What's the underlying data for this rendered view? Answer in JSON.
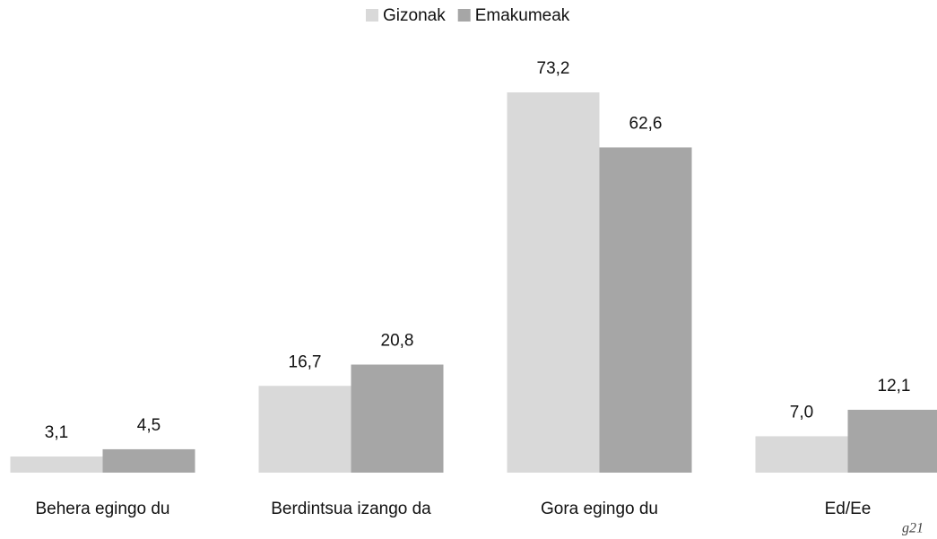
{
  "chart_data": {
    "type": "bar",
    "categories": [
      "Behera egingo du",
      "Berdintsua izango da",
      "Gora egingo du",
      "Ed/Ee"
    ],
    "series": [
      {
        "name": "Gizonak",
        "color": "#d9d9d9",
        "values": [
          3.1,
          16.7,
          73.2,
          7.0
        ],
        "value_labels": [
          "3,1",
          "16,7",
          "73,2",
          "7,0"
        ]
      },
      {
        "name": "Emakumeak",
        "color": "#a6a6a6",
        "values": [
          4.5,
          20.8,
          62.6,
          12.1
        ],
        "value_labels": [
          "4,5",
          "20,8",
          "62,6",
          "12,1"
        ]
      }
    ],
    "legend": "top",
    "annotation": "g21"
  }
}
